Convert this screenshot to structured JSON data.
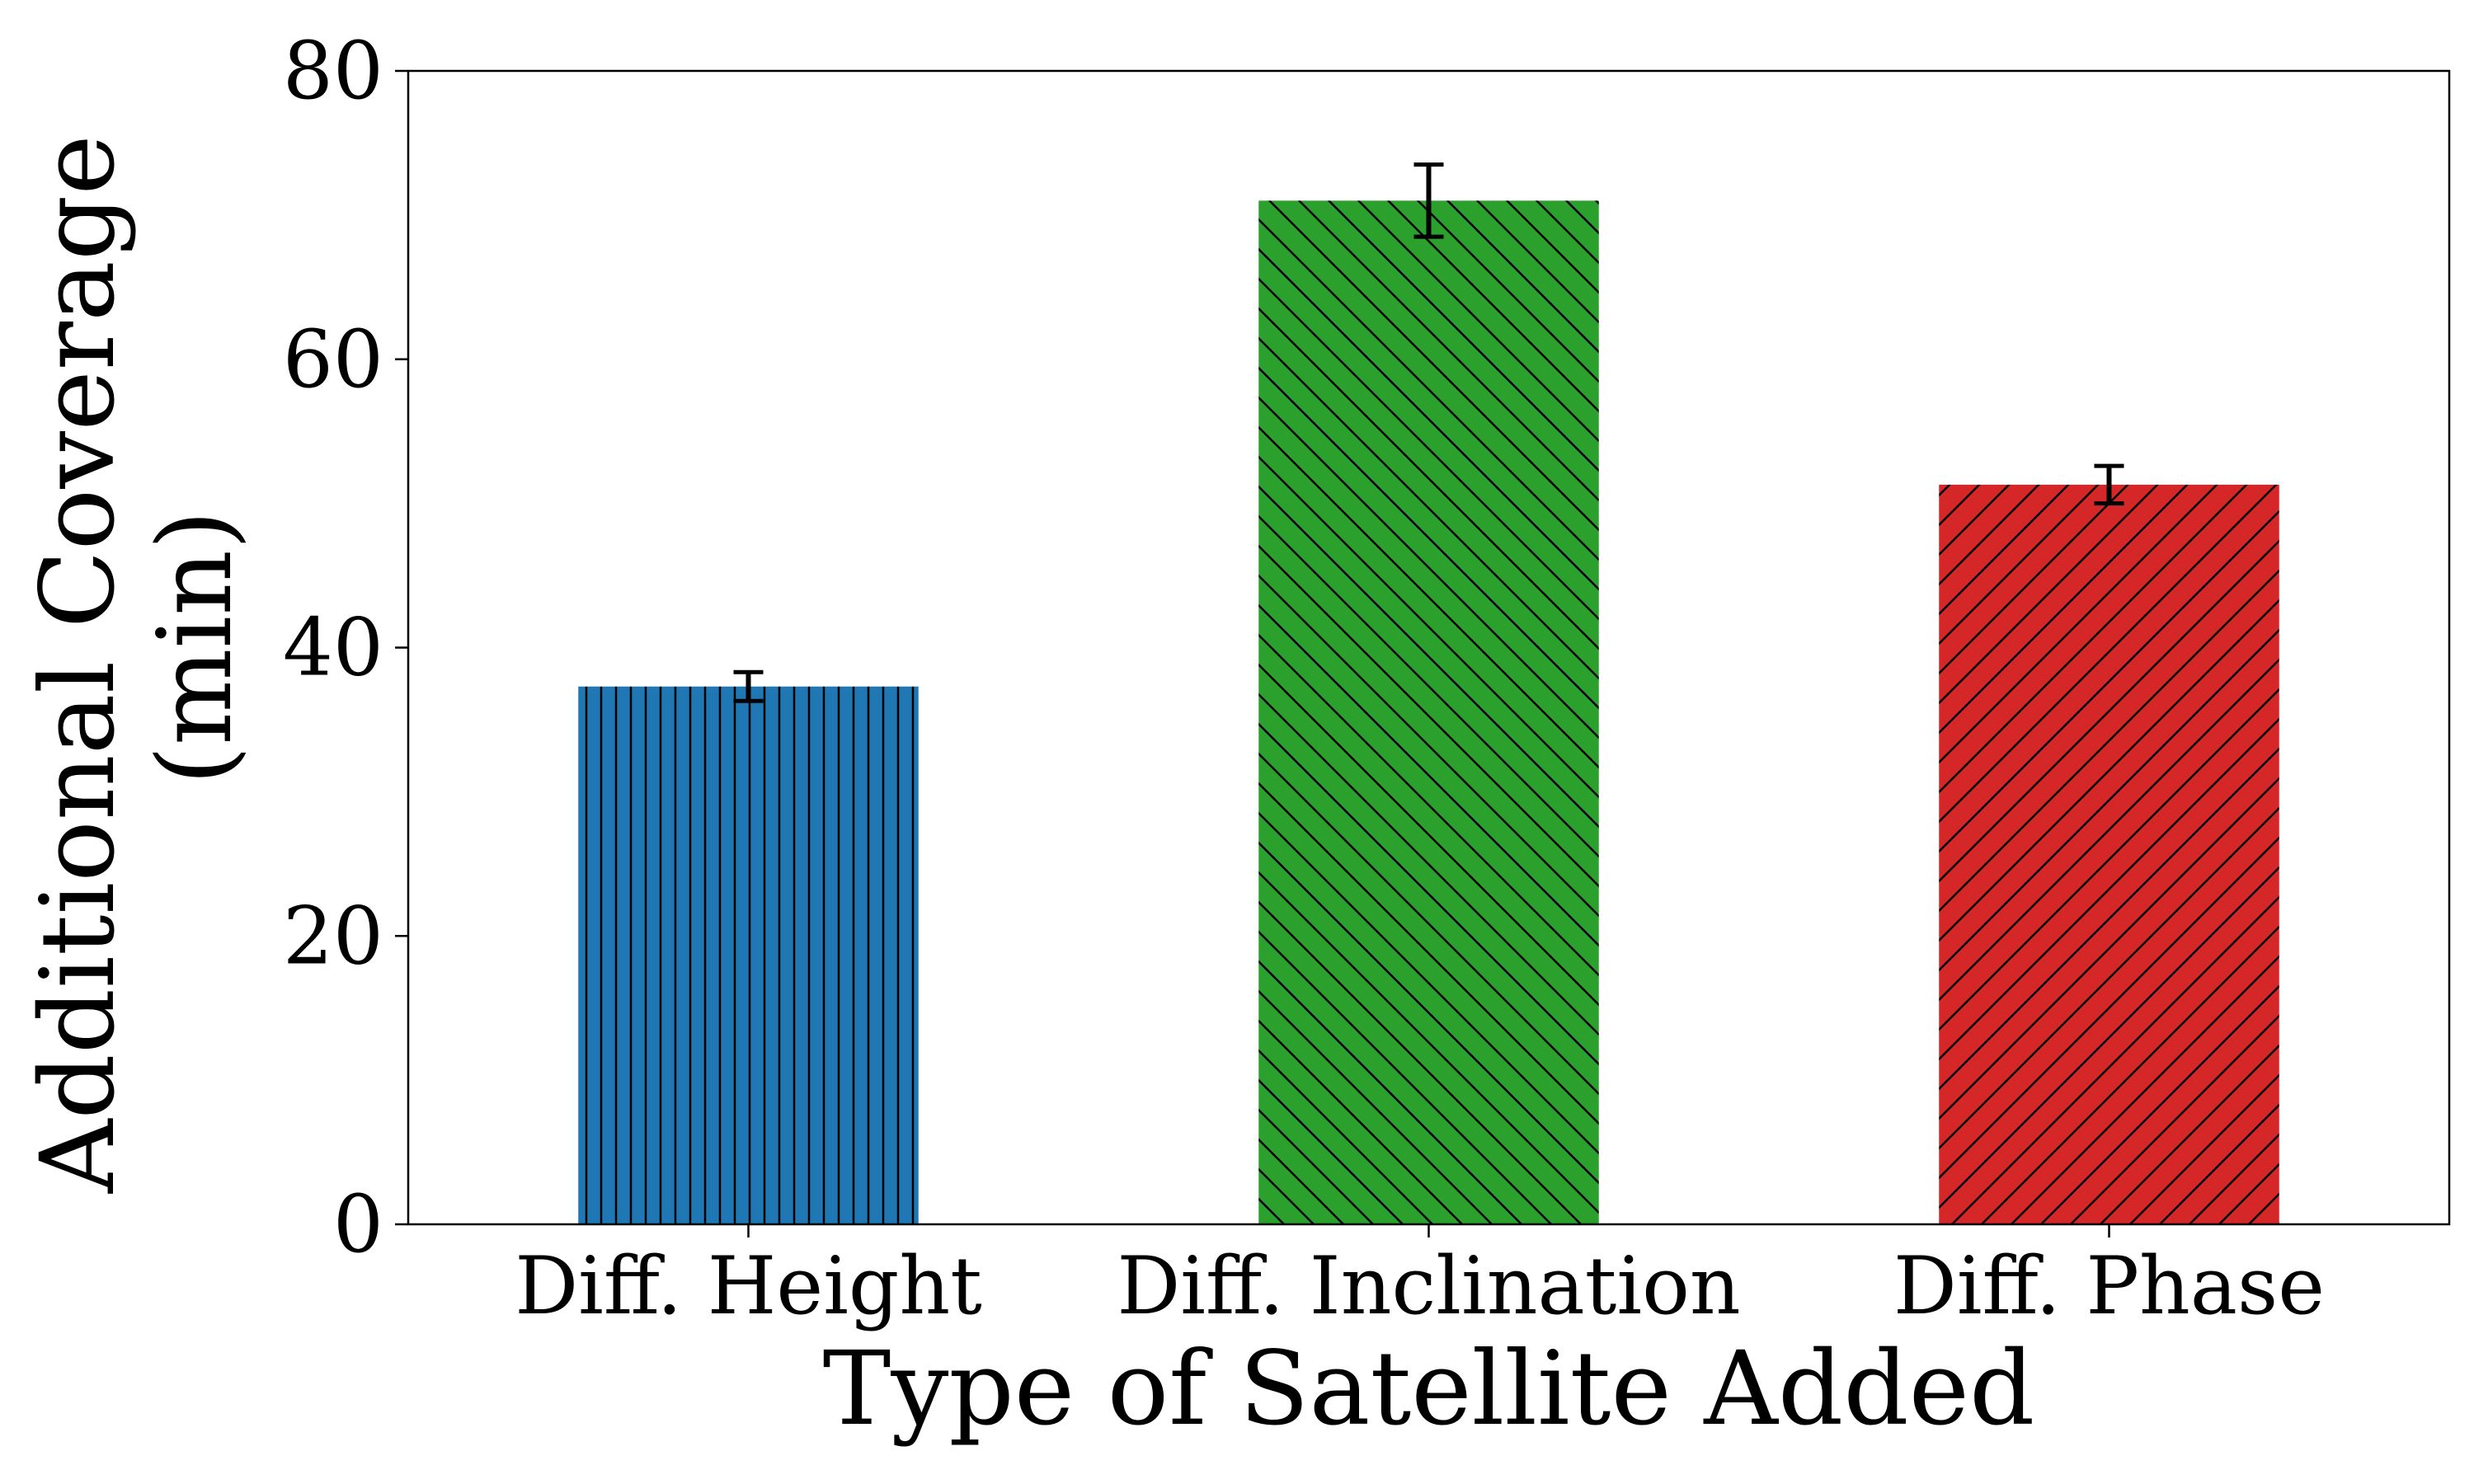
{
  "chart_data": {
    "type": "bar",
    "title": "",
    "xlabel": "Type of Satellite Added",
    "ylabel_lines": [
      "Additional Coverage",
      "(min)"
    ],
    "categories": [
      "Diff. Height",
      "Diff. Inclination",
      "Diff. Phase"
    ],
    "series": [
      {
        "values": [
          37.3,
          71.0,
          51.3
        ],
        "errors": [
          1.0,
          2.5,
          1.3
        ]
      }
    ],
    "ylim": [
      0,
      80
    ],
    "yticks": [
      0,
      20,
      40,
      60,
      80
    ],
    "grid": false,
    "legend": "none",
    "colors": [
      "#1f77b4",
      "#2ca02c",
      "#d62728"
    ],
    "hatches": [
      "vertical",
      "backslash",
      "slash"
    ]
  }
}
